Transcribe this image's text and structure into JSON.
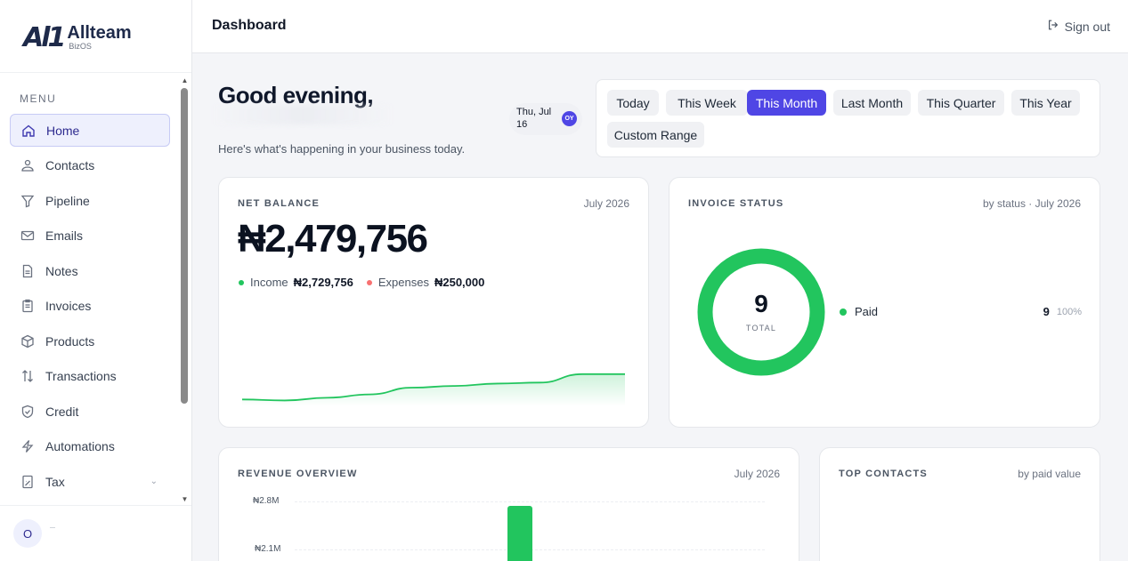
{
  "brand": {
    "mark": "Al1",
    "name": "Allteam",
    "sub": "BizOS"
  },
  "sidebar": {
    "menu_label": "MENU",
    "items": [
      {
        "label": "Home",
        "icon": "home-icon",
        "active": true
      },
      {
        "label": "Contacts",
        "icon": "contacts-icon"
      },
      {
        "label": "Pipeline",
        "icon": "funnel-icon"
      },
      {
        "label": "Emails",
        "icon": "mail-icon"
      },
      {
        "label": "Notes",
        "icon": "note-icon"
      },
      {
        "label": "Invoices",
        "icon": "clipboard-icon"
      },
      {
        "label": "Products",
        "icon": "box-icon"
      },
      {
        "label": "Transactions",
        "icon": "arrows-updown-icon"
      },
      {
        "label": "Credit",
        "icon": "shield-icon"
      },
      {
        "label": "Automations",
        "icon": "bolt-icon"
      },
      {
        "label": "Tax",
        "icon": "calculator-icon",
        "has_chevron": true
      }
    ],
    "avatar_initial": "O"
  },
  "header": {
    "title": "Dashboard",
    "signout_label": "Sign out"
  },
  "greeting": {
    "title": "Good evening,",
    "subtitle": "Here's what's happening in your business today.",
    "date": "Thu, Jul 16",
    "badge": "OY"
  },
  "range": {
    "options": [
      "Today",
      "This Week",
      "This Month",
      "Last Month",
      "This Quarter",
      "This Year",
      "Custom Range"
    ],
    "selected": "This Month"
  },
  "net_balance": {
    "label": "NET BALANCE",
    "period": "July 2026",
    "amount": "₦2,479,756",
    "income_label": "Income",
    "income_value": "₦2,729,756",
    "expenses_label": "Expenses",
    "expenses_value": "₦250,000",
    "income_color": "#22c55e",
    "expenses_color": "#f87171"
  },
  "invoice_status": {
    "label": "INVOICE STATUS",
    "meta": "by status · July 2026",
    "total": "9",
    "total_label": "TOTAL",
    "status": "Paid",
    "count": "9",
    "pct": "100%",
    "color": "#22c55e"
  },
  "revenue": {
    "label": "REVENUE OVERVIEW",
    "period": "July 2026",
    "ticks": [
      "₦2.8M",
      "₦2.1M"
    ]
  },
  "top_contacts": {
    "label": "TOP CONTACTS",
    "meta": "by paid value"
  },
  "chart_data": [
    {
      "type": "area",
      "title": "",
      "series": [
        {
          "values": [
            0.15,
            0.12,
            0.2,
            0.3,
            0.5,
            0.55,
            0.62,
            0.65,
            0.9,
            0.9
          ]
        }
      ]
    },
    {
      "type": "pie",
      "categories": [
        "Paid"
      ],
      "values": [
        9
      ]
    },
    {
      "type": "bar",
      "title": "REVENUE OVERVIEW",
      "y_ticks": [
        "₦2.8M",
        "₦2.1M"
      ],
      "series": [
        {
          "values": [
            2.73
          ]
        }
      ]
    }
  ]
}
